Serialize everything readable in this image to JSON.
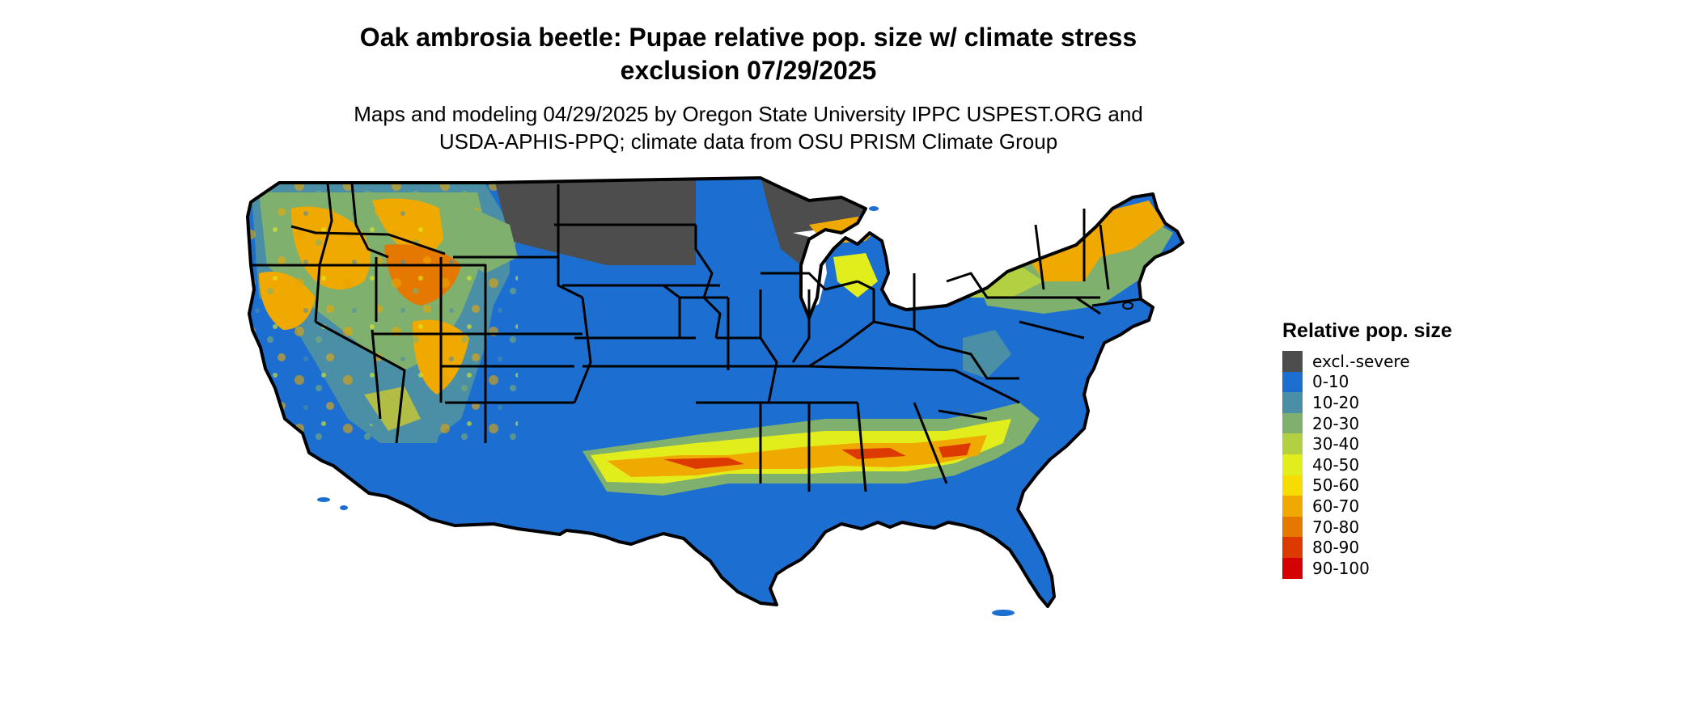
{
  "title": {
    "line1": "Oak ambrosia beetle: Pupae relative pop. size w/ climate stress",
    "line2": "exclusion 07/29/2025"
  },
  "subtitle": {
    "line1": "Maps and modeling 04/29/2025 by Oregon State University IPPC USPEST.ORG and",
    "line2": "USDA-APHIS-PPQ; climate data from OSU PRISM Climate Group"
  },
  "legend": {
    "title": "Relative pop. size",
    "items": [
      {
        "label": "excl.-severe",
        "color": "#4d4d4d"
      },
      {
        "label": "0-10",
        "color": "#1c6fd0"
      },
      {
        "label": "10-20",
        "color": "#4a8fa6"
      },
      {
        "label": "20-30",
        "color": "#7fb06e"
      },
      {
        "label": "30-40",
        "color": "#b2d042"
      },
      {
        "label": "40-50",
        "color": "#e2ee1c"
      },
      {
        "label": "50-60",
        "color": "#f7dc04"
      },
      {
        "label": "60-70",
        "color": "#f0a900"
      },
      {
        "label": "70-80",
        "color": "#e57800"
      },
      {
        "label": "80-90",
        "color": "#dc3a00"
      },
      {
        "label": "90-100",
        "color": "#d50000"
      }
    ]
  },
  "map": {
    "region": "Contiguous United States",
    "base_color": "#1c6fd0",
    "border_color": "#000000"
  }
}
